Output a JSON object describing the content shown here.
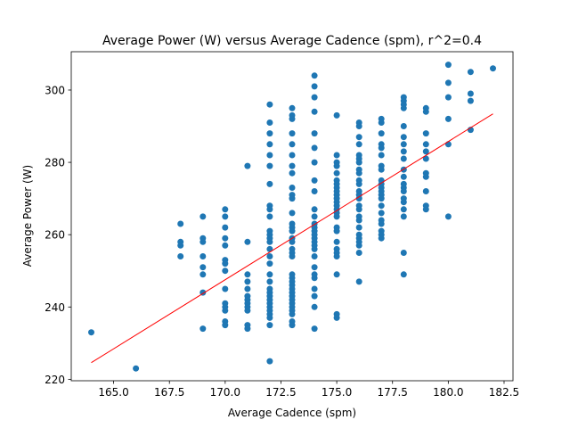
{
  "chart_data": {
    "type": "scatter",
    "title": "Average Power (W) versus Average Cadence (spm), r^2=0.4",
    "xlabel": "Average Cadence (spm)",
    "ylabel": "Average Power (W)",
    "xlim": [
      163.1,
      182.9
    ],
    "ylim": [
      219.6,
      310.6
    ],
    "xticks": [
      165.0,
      167.5,
      170.0,
      172.5,
      175.0,
      177.5,
      180.0,
      182.5
    ],
    "xtick_labels": [
      "165.0",
      "167.5",
      "170.0",
      "172.5",
      "175.0",
      "177.5",
      "180.0",
      "182.5"
    ],
    "yticks": [
      220,
      240,
      260,
      280,
      300
    ],
    "ytick_labels": [
      "220",
      "240",
      "260",
      "280",
      "300"
    ],
    "grid": false,
    "point_color": "#1f77b4",
    "line_color": "#ff0000",
    "points": [
      [
        164,
        233
      ],
      [
        166,
        223
      ],
      [
        168,
        263
      ],
      [
        168,
        258
      ],
      [
        168,
        257
      ],
      [
        168,
        254
      ],
      [
        169,
        265
      ],
      [
        169,
        259
      ],
      [
        169,
        258
      ],
      [
        169,
        254
      ],
      [
        169,
        251
      ],
      [
        169,
        249
      ],
      [
        169,
        244
      ],
      [
        169,
        234
      ],
      [
        170,
        267
      ],
      [
        170,
        265
      ],
      [
        170,
        262
      ],
      [
        170,
        259
      ],
      [
        170,
        257
      ],
      [
        170,
        253
      ],
      [
        170,
        252
      ],
      [
        170,
        250
      ],
      [
        170,
        245
      ],
      [
        170,
        241
      ],
      [
        170,
        240
      ],
      [
        170,
        239
      ],
      [
        170,
        236
      ],
      [
        170,
        235
      ],
      [
        171,
        279
      ],
      [
        171,
        258
      ],
      [
        171,
        249
      ],
      [
        171,
        247
      ],
      [
        171,
        245
      ],
      [
        171,
        243
      ],
      [
        171,
        242
      ],
      [
        171,
        241
      ],
      [
        171,
        240
      ],
      [
        171,
        239
      ],
      [
        171,
        235
      ],
      [
        171,
        234
      ],
      [
        172,
        296
      ],
      [
        172,
        291
      ],
      [
        172,
        288
      ],
      [
        172,
        285
      ],
      [
        172,
        282
      ],
      [
        172,
        279
      ],
      [
        172,
        274
      ],
      [
        172,
        268
      ],
      [
        172,
        267
      ],
      [
        172,
        265
      ],
      [
        172,
        261
      ],
      [
        172,
        260
      ],
      [
        172,
        259
      ],
      [
        172,
        258
      ],
      [
        172,
        256
      ],
      [
        172,
        254
      ],
      [
        172,
        252
      ],
      [
        172,
        249
      ],
      [
        172,
        247
      ],
      [
        172,
        245
      ],
      [
        172,
        244
      ],
      [
        172,
        243
      ],
      [
        172,
        242
      ],
      [
        172,
        241
      ],
      [
        172,
        240
      ],
      [
        172,
        239
      ],
      [
        172,
        238
      ],
      [
        172,
        237
      ],
      [
        172,
        235
      ],
      [
        172,
        225
      ],
      [
        173,
        295
      ],
      [
        173,
        293
      ],
      [
        173,
        292
      ],
      [
        173,
        288
      ],
      [
        173,
        285
      ],
      [
        173,
        282
      ],
      [
        173,
        279
      ],
      [
        173,
        277
      ],
      [
        173,
        273
      ],
      [
        173,
        271
      ],
      [
        173,
        270
      ],
      [
        173,
        266
      ],
      [
        173,
        263
      ],
      [
        173,
        262
      ],
      [
        173,
        261
      ],
      [
        173,
        259
      ],
      [
        173,
        258
      ],
      [
        173,
        256
      ],
      [
        173,
        255
      ],
      [
        173,
        254
      ],
      [
        173,
        249
      ],
      [
        173,
        248
      ],
      [
        173,
        247
      ],
      [
        173,
        246
      ],
      [
        173,
        245
      ],
      [
        173,
        244
      ],
      [
        173,
        243
      ],
      [
        173,
        242
      ],
      [
        173,
        241
      ],
      [
        173,
        240
      ],
      [
        173,
        239
      ],
      [
        173,
        238
      ],
      [
        173,
        236
      ],
      [
        173,
        235
      ],
      [
        174,
        304
      ],
      [
        174,
        301
      ],
      [
        174,
        298
      ],
      [
        174,
        294
      ],
      [
        174,
        288
      ],
      [
        174,
        284
      ],
      [
        174,
        280
      ],
      [
        174,
        275
      ],
      [
        174,
        272
      ],
      [
        174,
        267
      ],
      [
        174,
        265
      ],
      [
        174,
        263
      ],
      [
        174,
        262
      ],
      [
        174,
        261
      ],
      [
        174,
        260
      ],
      [
        174,
        259
      ],
      [
        174,
        258
      ],
      [
        174,
        257
      ],
      [
        174,
        256
      ],
      [
        174,
        254
      ],
      [
        174,
        251
      ],
      [
        174,
        249
      ],
      [
        174,
        248
      ],
      [
        174,
        245
      ],
      [
        174,
        243
      ],
      [
        174,
        240
      ],
      [
        174,
        234
      ],
      [
        175,
        293
      ],
      [
        175,
        282
      ],
      [
        175,
        280
      ],
      [
        175,
        279
      ],
      [
        175,
        277
      ],
      [
        175,
        275
      ],
      [
        175,
        274
      ],
      [
        175,
        273
      ],
      [
        175,
        272
      ],
      [
        175,
        271
      ],
      [
        175,
        270
      ],
      [
        175,
        269
      ],
      [
        175,
        268
      ],
      [
        175,
        267
      ],
      [
        175,
        266
      ],
      [
        175,
        265
      ],
      [
        175,
        262
      ],
      [
        175,
        261
      ],
      [
        175,
        258
      ],
      [
        175,
        256
      ],
      [
        175,
        255
      ],
      [
        175,
        254
      ],
      [
        175,
        249
      ],
      [
        175,
        238
      ],
      [
        175,
        237
      ],
      [
        176,
        291
      ],
      [
        176,
        290
      ],
      [
        176,
        287
      ],
      [
        176,
        285
      ],
      [
        176,
        282
      ],
      [
        176,
        281
      ],
      [
        176,
        280
      ],
      [
        176,
        278
      ],
      [
        176,
        277
      ],
      [
        176,
        275
      ],
      [
        176,
        274
      ],
      [
        176,
        272
      ],
      [
        176,
        271
      ],
      [
        176,
        270
      ],
      [
        176,
        268
      ],
      [
        176,
        267
      ],
      [
        176,
        265
      ],
      [
        176,
        264
      ],
      [
        176,
        262
      ],
      [
        176,
        260
      ],
      [
        176,
        259
      ],
      [
        176,
        258
      ],
      [
        176,
        257
      ],
      [
        176,
        255
      ],
      [
        176,
        247
      ],
      [
        177,
        292
      ],
      [
        177,
        291
      ],
      [
        177,
        288
      ],
      [
        177,
        285
      ],
      [
        177,
        284
      ],
      [
        177,
        282
      ],
      [
        177,
        279
      ],
      [
        177,
        278
      ],
      [
        177,
        275
      ],
      [
        177,
        274
      ],
      [
        177,
        273
      ],
      [
        177,
        272
      ],
      [
        177,
        271
      ],
      [
        177,
        270
      ],
      [
        177,
        268
      ],
      [
        177,
        266
      ],
      [
        177,
        264
      ],
      [
        177,
        263
      ],
      [
        177,
        261
      ],
      [
        177,
        260
      ],
      [
        177,
        259
      ],
      [
        178,
        298
      ],
      [
        178,
        297
      ],
      [
        178,
        296
      ],
      [
        178,
        295
      ],
      [
        178,
        290
      ],
      [
        178,
        287
      ],
      [
        178,
        285
      ],
      [
        178,
        283
      ],
      [
        178,
        281
      ],
      [
        178,
        278
      ],
      [
        178,
        276
      ],
      [
        178,
        274
      ],
      [
        178,
        273
      ],
      [
        178,
        272
      ],
      [
        178,
        270
      ],
      [
        178,
        269
      ],
      [
        178,
        267
      ],
      [
        178,
        265
      ],
      [
        178,
        255
      ],
      [
        178,
        249
      ],
      [
        179,
        295
      ],
      [
        179,
        294
      ],
      [
        179,
        288
      ],
      [
        179,
        285
      ],
      [
        179,
        283
      ],
      [
        179,
        281
      ],
      [
        179,
        277
      ],
      [
        179,
        276
      ],
      [
        179,
        272
      ],
      [
        179,
        268
      ],
      [
        179,
        267
      ],
      [
        180,
        307
      ],
      [
        180,
        302
      ],
      [
        180,
        298
      ],
      [
        180,
        292
      ],
      [
        180,
        285
      ],
      [
        180,
        265
      ],
      [
        181,
        305
      ],
      [
        181,
        299
      ],
      [
        181,
        297
      ],
      [
        181,
        289
      ],
      [
        182,
        306
      ]
    ],
    "regression": {
      "x": [
        164,
        182
      ],
      "y": [
        224.6,
        293.4
      ]
    }
  }
}
